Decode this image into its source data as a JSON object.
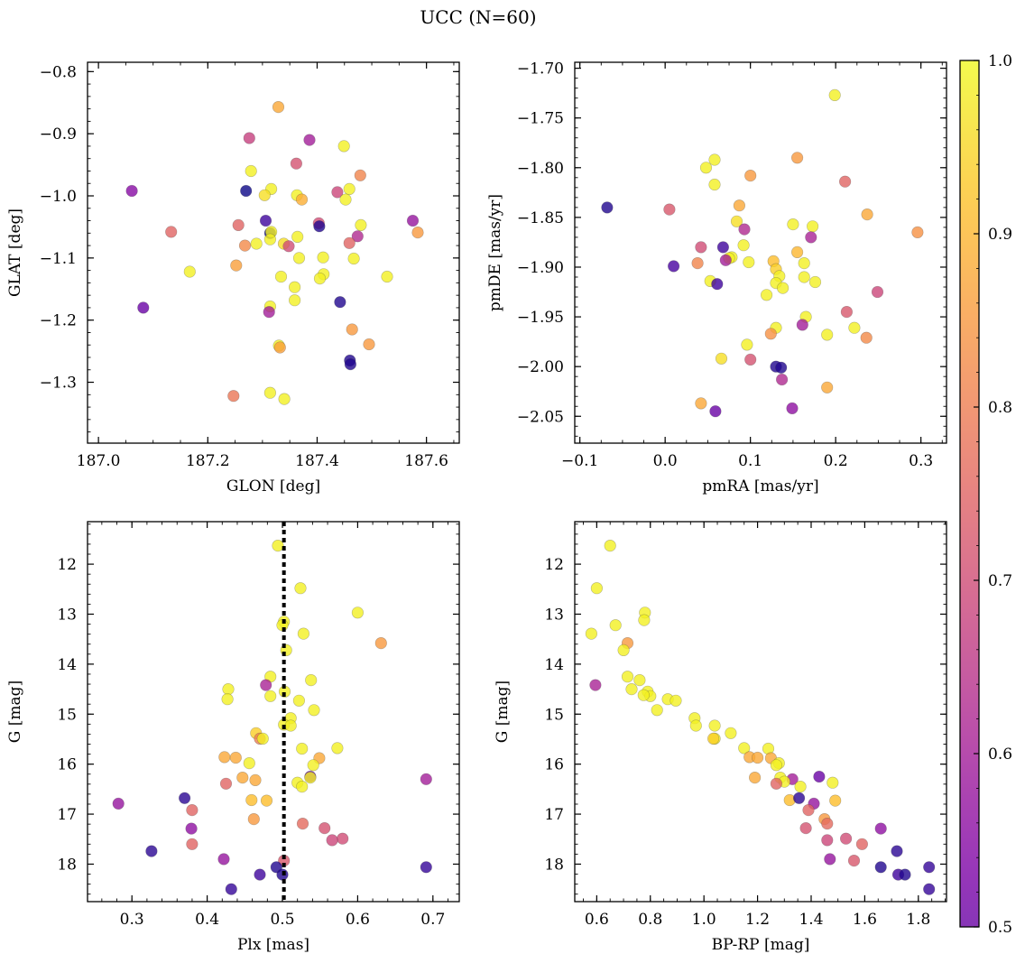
{
  "title": "UCC (N=60)",
  "colorbar": {
    "cmap": "plasma",
    "min": 0.5,
    "max": 1.0,
    "ticks": [
      "0.5",
      "0.6",
      "0.7",
      "0.8",
      "0.9",
      "1.0"
    ]
  },
  "chart_data": [
    {
      "type": "scatter",
      "id": "sky",
      "xlabel": "GLON [deg]",
      "ylabel": "GLAT [deg]",
      "xlim": [
        186.98,
        187.66
      ],
      "ylim": [
        -1.398,
        -0.785
      ],
      "xticks": [
        187.0,
        187.2,
        187.4,
        187.6
      ],
      "xtick_labels": [
        "187.0",
        "187.2",
        "187.4",
        "187.6"
      ],
      "yticks": [
        -0.8,
        -0.9,
        -1.0,
        -1.1,
        -1.2,
        -1.3
      ],
      "ytick_labels": [
        "−0.8",
        "−0.9",
        "−1.0",
        "−1.1",
        "−1.2",
        "−1.3"
      ],
      "points": [
        [
          187.329,
          -0.857,
          0.9
        ],
        [
          187.276,
          -0.907,
          0.74
        ],
        [
          187.386,
          -0.91,
          0.68
        ],
        [
          187.449,
          -0.92,
          0.99
        ],
        [
          187.362,
          -0.948,
          0.77
        ],
        [
          187.279,
          -0.96,
          0.99
        ],
        [
          187.479,
          -0.967,
          0.85
        ],
        [
          187.316,
          -0.989,
          0.99
        ],
        [
          187.459,
          -0.989,
          0.99
        ],
        [
          187.061,
          -0.992,
          0.64
        ],
        [
          187.27,
          -0.992,
          0.5
        ],
        [
          187.437,
          -0.994,
          0.75
        ],
        [
          187.304,
          -0.999,
          0.97
        ],
        [
          187.363,
          -0.999,
          0.99
        ],
        [
          187.372,
          -1.006,
          0.91
        ],
        [
          187.452,
          -1.006,
          0.99
        ],
        [
          187.306,
          -1.04,
          0.55
        ],
        [
          187.403,
          -1.044,
          0.76
        ],
        [
          187.575,
          -1.04,
          0.66
        ],
        [
          187.256,
          -1.047,
          0.8
        ],
        [
          187.404,
          -1.049,
          0.52
        ],
        [
          187.48,
          -1.047,
          0.99
        ],
        [
          187.133,
          -1.058,
          0.8
        ],
        [
          187.314,
          -1.06,
          0.5
        ],
        [
          187.316,
          -1.058,
          0.99
        ],
        [
          187.584,
          -1.059,
          0.88
        ],
        [
          187.474,
          -1.065,
          0.7
        ],
        [
          187.364,
          -1.066,
          0.99
        ],
        [
          187.314,
          -1.07,
          0.99
        ],
        [
          187.268,
          -1.08,
          0.86
        ],
        [
          187.289,
          -1.077,
          0.99
        ],
        [
          187.339,
          -1.077,
          0.97
        ],
        [
          187.348,
          -1.081,
          0.76
        ],
        [
          187.459,
          -1.076,
          0.8
        ],
        [
          187.411,
          -1.099,
          0.99
        ],
        [
          187.367,
          -1.1,
          0.99
        ],
        [
          187.467,
          -1.101,
          0.99
        ],
        [
          187.252,
          -1.112,
          0.89
        ],
        [
          187.167,
          -1.122,
          0.99
        ],
        [
          187.412,
          -1.126,
          0.99
        ],
        [
          187.334,
          -1.13,
          0.99
        ],
        [
          187.405,
          -1.133,
          0.99
        ],
        [
          187.528,
          -1.13,
          0.99
        ],
        [
          187.359,
          -1.147,
          0.99
        ],
        [
          187.359,
          -1.168,
          0.99
        ],
        [
          187.442,
          -1.171,
          0.52
        ],
        [
          187.082,
          -1.18,
          0.6
        ],
        [
          187.314,
          -1.178,
          0.99
        ],
        [
          187.312,
          -1.187,
          0.68
        ],
        [
          187.464,
          -1.215,
          0.88
        ],
        [
          187.495,
          -1.239,
          0.88
        ],
        [
          187.33,
          -1.241,
          0.99
        ],
        [
          187.332,
          -1.244,
          0.89
        ],
        [
          187.46,
          -1.265,
          0.52
        ],
        [
          187.461,
          -1.271,
          0.52
        ],
        [
          187.247,
          -1.322,
          0.83
        ],
        [
          187.314,
          -1.317,
          0.99
        ],
        [
          187.34,
          -1.327,
          0.99
        ]
      ]
    },
    {
      "type": "scatter",
      "id": "pm",
      "xlabel": "pmRA [mas/yr]",
      "ylabel": "pmDE [mas/yr]",
      "xlim": [
        -0.106,
        0.33
      ],
      "ylim": [
        -2.077,
        -1.694
      ],
      "xticks": [
        -0.1,
        0.0,
        0.1,
        0.2,
        0.3
      ],
      "xtick_labels": [
        "−0.1",
        "0.0",
        "0.1",
        "0.2",
        "0.3"
      ],
      "yticks": [
        -1.7,
        -1.75,
        -1.8,
        -1.85,
        -1.9,
        -1.95,
        -2.0,
        -2.05
      ],
      "ytick_labels": [
        "−1.70",
        "−1.75",
        "−1.80",
        "−1.85",
        "−1.90",
        "−1.95",
        "−2.00",
        "−2.05"
      ],
      "points": [
        [
          0.199,
          -1.727,
          0.99
        ],
        [
          0.058,
          -1.792,
          0.99
        ],
        [
          0.155,
          -1.79,
          0.88
        ],
        [
          0.048,
          -1.8,
          0.99
        ],
        [
          0.1,
          -1.808,
          0.88
        ],
        [
          0.211,
          -1.814,
          0.8
        ],
        [
          0.058,
          -1.817,
          0.99
        ],
        [
          -0.068,
          -1.84,
          0.52
        ],
        [
          0.005,
          -1.842,
          0.78
        ],
        [
          0.087,
          -1.838,
          0.9
        ],
        [
          0.237,
          -1.847,
          0.9
        ],
        [
          0.084,
          -1.854,
          0.97
        ],
        [
          0.15,
          -1.857,
          0.99
        ],
        [
          0.173,
          -1.859,
          0.99
        ],
        [
          0.093,
          -1.862,
          0.7
        ],
        [
          0.296,
          -1.865,
          0.87
        ],
        [
          0.171,
          -1.87,
          0.69
        ],
        [
          0.092,
          -1.878,
          0.99
        ],
        [
          0.068,
          -1.88,
          0.55
        ],
        [
          0.042,
          -1.88,
          0.76
        ],
        [
          0.155,
          -1.885,
          0.92
        ],
        [
          0.078,
          -1.89,
          0.99
        ],
        [
          0.075,
          -1.891,
          0.99
        ],
        [
          0.071,
          -1.893,
          0.68
        ],
        [
          0.127,
          -1.894,
          0.93
        ],
        [
          0.098,
          -1.895,
          0.99
        ],
        [
          0.163,
          -1.896,
          0.99
        ],
        [
          0.038,
          -1.896,
          0.85
        ],
        [
          0.01,
          -1.899,
          0.56
        ],
        [
          0.13,
          -1.902,
          0.95
        ],
        [
          0.134,
          -1.909,
          0.99
        ],
        [
          0.163,
          -1.91,
          0.99
        ],
        [
          0.053,
          -1.914,
          0.99
        ],
        [
          0.176,
          -1.915,
          0.99
        ],
        [
          0.13,
          -1.916,
          0.99
        ],
        [
          0.061,
          -1.917,
          0.55
        ],
        [
          0.138,
          -1.921,
          0.99
        ],
        [
          0.249,
          -1.925,
          0.75
        ],
        [
          0.119,
          -1.928,
          0.99
        ],
        [
          0.213,
          -1.945,
          0.78
        ],
        [
          0.165,
          -1.95,
          0.99
        ],
        [
          0.161,
          -1.958,
          0.68
        ],
        [
          0.13,
          -1.961,
          0.99
        ],
        [
          0.222,
          -1.961,
          0.99
        ],
        [
          0.124,
          -1.967,
          0.87
        ],
        [
          0.19,
          -1.968,
          0.99
        ],
        [
          0.236,
          -1.971,
          0.86
        ],
        [
          0.096,
          -1.978,
          0.99
        ],
        [
          0.066,
          -1.992,
          0.97
        ],
        [
          0.1,
          -1.993,
          0.77
        ],
        [
          0.13,
          -2.0,
          0.52
        ],
        [
          0.136,
          -2.001,
          0.52
        ],
        [
          0.137,
          -2.013,
          0.7
        ],
        [
          0.19,
          -2.021,
          0.9
        ],
        [
          0.042,
          -2.037,
          0.9
        ],
        [
          0.149,
          -2.042,
          0.65
        ],
        [
          0.059,
          -2.045,
          0.6
        ]
      ]
    },
    {
      "type": "scatter",
      "id": "plx",
      "xlabel": "Plx [mas]",
      "ylabel": "G [mag]",
      "xlim": [
        0.241,
        0.735
      ],
      "ylim": [
        18.75,
        11.15
      ],
      "y_inverted": true,
      "vline": 0.502,
      "xticks": [
        0.3,
        0.4,
        0.5,
        0.6,
        0.7
      ],
      "xtick_labels": [
        "0.3",
        "0.4",
        "0.5",
        "0.6",
        "0.7"
      ],
      "yticks": [
        12,
        13,
        14,
        15,
        16,
        17,
        18
      ],
      "ytick_labels": [
        "12",
        "13",
        "14",
        "15",
        "16",
        "17",
        "18"
      ],
      "points": [
        [
          0.494,
          11.63,
          0.99
        ],
        [
          0.524,
          12.48,
          0.99
        ],
        [
          0.6,
          12.97,
          0.99
        ],
        [
          0.502,
          13.15,
          0.99
        ],
        [
          0.5,
          13.22,
          0.99
        ],
        [
          0.528,
          13.39,
          0.99
        ],
        [
          0.631,
          13.58,
          0.88
        ],
        [
          0.505,
          13.72,
          0.99
        ],
        [
          0.484,
          14.25,
          0.99
        ],
        [
          0.538,
          14.32,
          0.99
        ],
        [
          0.478,
          14.42,
          0.69
        ],
        [
          0.428,
          14.5,
          0.99
        ],
        [
          0.503,
          14.55,
          0.99
        ],
        [
          0.484,
          14.64,
          0.99
        ],
        [
          0.427,
          14.7,
          0.99
        ],
        [
          0.522,
          14.73,
          0.99
        ],
        [
          0.542,
          14.92,
          0.99
        ],
        [
          0.511,
          15.08,
          0.99
        ],
        [
          0.502,
          15.21,
          0.99
        ],
        [
          0.511,
          15.23,
          0.99
        ],
        [
          0.465,
          15.38,
          0.95
        ],
        [
          0.47,
          15.49,
          0.84
        ],
        [
          0.474,
          15.49,
          0.99
        ],
        [
          0.573,
          15.68,
          0.99
        ],
        [
          0.526,
          15.69,
          0.99
        ],
        [
          0.423,
          15.86,
          0.9
        ],
        [
          0.438,
          15.87,
          0.9
        ],
        [
          0.549,
          15.88,
          0.9
        ],
        [
          0.456,
          15.98,
          0.99
        ],
        [
          0.541,
          16.02,
          0.99
        ],
        [
          0.537,
          16.25,
          0.6
        ],
        [
          0.447,
          16.27,
          0.9
        ],
        [
          0.537,
          16.27,
          0.99
        ],
        [
          0.464,
          16.32,
          0.9
        ],
        [
          0.52,
          16.37,
          0.99
        ],
        [
          0.425,
          16.39,
          0.8
        ],
        [
          0.526,
          16.45,
          0.99
        ],
        [
          0.691,
          16.3,
          0.68
        ],
        [
          0.459,
          16.72,
          0.93
        ],
        [
          0.479,
          16.73,
          0.93
        ],
        [
          0.37,
          16.68,
          0.53
        ],
        [
          0.282,
          16.79,
          0.66
        ],
        [
          0.38,
          16.92,
          0.8
        ],
        [
          0.462,
          17.1,
          0.88
        ],
        [
          0.527,
          17.19,
          0.81
        ],
        [
          0.379,
          17.29,
          0.65
        ],
        [
          0.556,
          17.28,
          0.77
        ],
        [
          0.58,
          17.49,
          0.76
        ],
        [
          0.566,
          17.52,
          0.75
        ],
        [
          0.38,
          17.6,
          0.8
        ],
        [
          0.326,
          17.74,
          0.53
        ],
        [
          0.422,
          17.9,
          0.66
        ],
        [
          0.502,
          17.93,
          0.78
        ],
        [
          0.492,
          18.06,
          0.52
        ],
        [
          0.691,
          18.06,
          0.54
        ],
        [
          0.47,
          18.21,
          0.55
        ],
        [
          0.5,
          18.21,
          0.52
        ],
        [
          0.432,
          18.5,
          0.54
        ]
      ]
    },
    {
      "type": "scatter",
      "id": "cmd",
      "xlabel": "BP-RP [mag]",
      "ylabel": "G [mag]",
      "xlim": [
        0.518,
        1.905
      ],
      "ylim": [
        18.75,
        11.15
      ],
      "y_inverted": true,
      "xticks": [
        0.6,
        0.8,
        1.0,
        1.2,
        1.4,
        1.6,
        1.8
      ],
      "xtick_labels": [
        "0.6",
        "0.8",
        "1.0",
        "1.2",
        "1.4",
        "1.6",
        "1.8"
      ],
      "yticks": [
        12,
        13,
        14,
        15,
        16,
        17,
        18
      ],
      "ytick_labels": [
        "12",
        "13",
        "14",
        "15",
        "16",
        "17",
        "18"
      ],
      "points": [
        [
          0.65,
          11.63,
          0.99
        ],
        [
          0.6,
          12.48,
          0.99
        ],
        [
          0.78,
          12.97,
          0.99
        ],
        [
          0.777,
          13.12,
          0.99
        ],
        [
          0.67,
          13.22,
          0.99
        ],
        [
          0.58,
          13.39,
          0.99
        ],
        [
          0.715,
          13.58,
          0.88
        ],
        [
          0.7,
          13.72,
          0.99
        ],
        [
          0.715,
          14.25,
          0.99
        ],
        [
          0.76,
          14.32,
          0.99
        ],
        [
          0.595,
          14.42,
          0.69
        ],
        [
          0.73,
          14.5,
          0.99
        ],
        [
          0.79,
          14.55,
          0.99
        ],
        [
          0.8,
          14.64,
          0.99
        ],
        [
          0.775,
          14.62,
          0.99
        ],
        [
          0.865,
          14.7,
          0.99
        ],
        [
          0.895,
          14.73,
          0.99
        ],
        [
          0.825,
          14.92,
          0.99
        ],
        [
          0.965,
          15.08,
          0.99
        ],
        [
          0.97,
          15.23,
          0.99
        ],
        [
          1.04,
          15.23,
          0.99
        ],
        [
          1.1,
          15.38,
          0.99
        ],
        [
          1.04,
          15.49,
          0.99
        ],
        [
          1.035,
          15.49,
          0.95
        ],
        [
          1.15,
          15.68,
          0.99
        ],
        [
          1.24,
          15.69,
          0.99
        ],
        [
          1.17,
          15.86,
          0.9
        ],
        [
          1.2,
          15.87,
          0.9
        ],
        [
          1.25,
          15.88,
          0.9
        ],
        [
          1.28,
          15.98,
          0.99
        ],
        [
          1.27,
          16.02,
          0.99
        ],
        [
          1.43,
          16.25,
          0.6
        ],
        [
          1.33,
          16.3,
          0.68
        ],
        [
          1.285,
          16.27,
          0.99
        ],
        [
          1.19,
          16.27,
          0.9
        ],
        [
          1.48,
          16.37,
          0.99
        ],
        [
          1.3,
          16.35,
          0.99
        ],
        [
          1.27,
          16.39,
          0.8
        ],
        [
          1.36,
          16.45,
          0.99
        ],
        [
          1.32,
          16.72,
          0.93
        ],
        [
          1.355,
          16.68,
          0.53
        ],
        [
          1.49,
          16.73,
          0.93
        ],
        [
          1.41,
          16.79,
          0.66
        ],
        [
          1.39,
          16.92,
          0.8
        ],
        [
          1.45,
          17.1,
          0.88
        ],
        [
          1.46,
          17.19,
          0.81
        ],
        [
          1.66,
          17.29,
          0.65
        ],
        [
          1.38,
          17.28,
          0.77
        ],
        [
          1.53,
          17.49,
          0.76
        ],
        [
          1.46,
          17.52,
          0.75
        ],
        [
          1.59,
          17.6,
          0.8
        ],
        [
          1.72,
          17.74,
          0.53
        ],
        [
          1.47,
          17.9,
          0.66
        ],
        [
          1.56,
          17.93,
          0.78
        ],
        [
          1.66,
          18.06,
          0.52
        ],
        [
          1.84,
          18.06,
          0.54
        ],
        [
          1.725,
          18.21,
          0.55
        ],
        [
          1.75,
          18.21,
          0.52
        ],
        [
          1.84,
          18.5,
          0.54
        ]
      ]
    }
  ]
}
